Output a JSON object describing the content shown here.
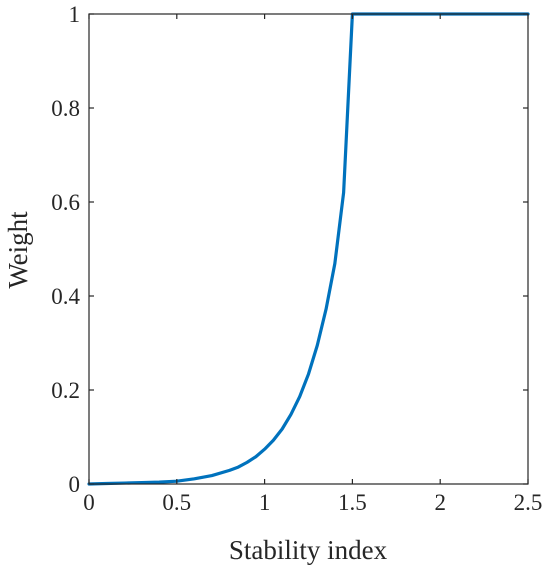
{
  "chart_data": {
    "type": "line",
    "title": "",
    "xlabel": "Stability index",
    "ylabel": "Weight",
    "xlim": [
      0,
      2.5
    ],
    "ylim": [
      0,
      1
    ],
    "grid": false,
    "legend": "none",
    "xticks": [
      "0",
      "0.5",
      "1",
      "1.5",
      "2",
      "2.5"
    ],
    "yticks": [
      "0",
      "0.2",
      "0.4",
      "0.6",
      "0.8",
      "1"
    ],
    "colors": {
      "line": "#0072BD",
      "axes": "#262626"
    },
    "series": [
      {
        "x": [
          0,
          0.1,
          0.2,
          0.3,
          0.4,
          0.5,
          0.6,
          0.7,
          0.8,
          0.85,
          0.9,
          0.95,
          1.0,
          1.05,
          1.1,
          1.15,
          1.2,
          1.25,
          1.3,
          1.35,
          1.4,
          1.45,
          1.5,
          2.0,
          2.5
        ],
        "values": [
          0,
          0.001,
          0.002,
          0.003,
          0.004,
          0.006,
          0.011,
          0.018,
          0.029,
          0.036,
          0.046,
          0.058,
          0.074,
          0.093,
          0.117,
          0.148,
          0.186,
          0.234,
          0.295,
          0.372,
          0.469,
          0.62,
          1.0,
          1.0,
          1.0
        ]
      }
    ]
  }
}
